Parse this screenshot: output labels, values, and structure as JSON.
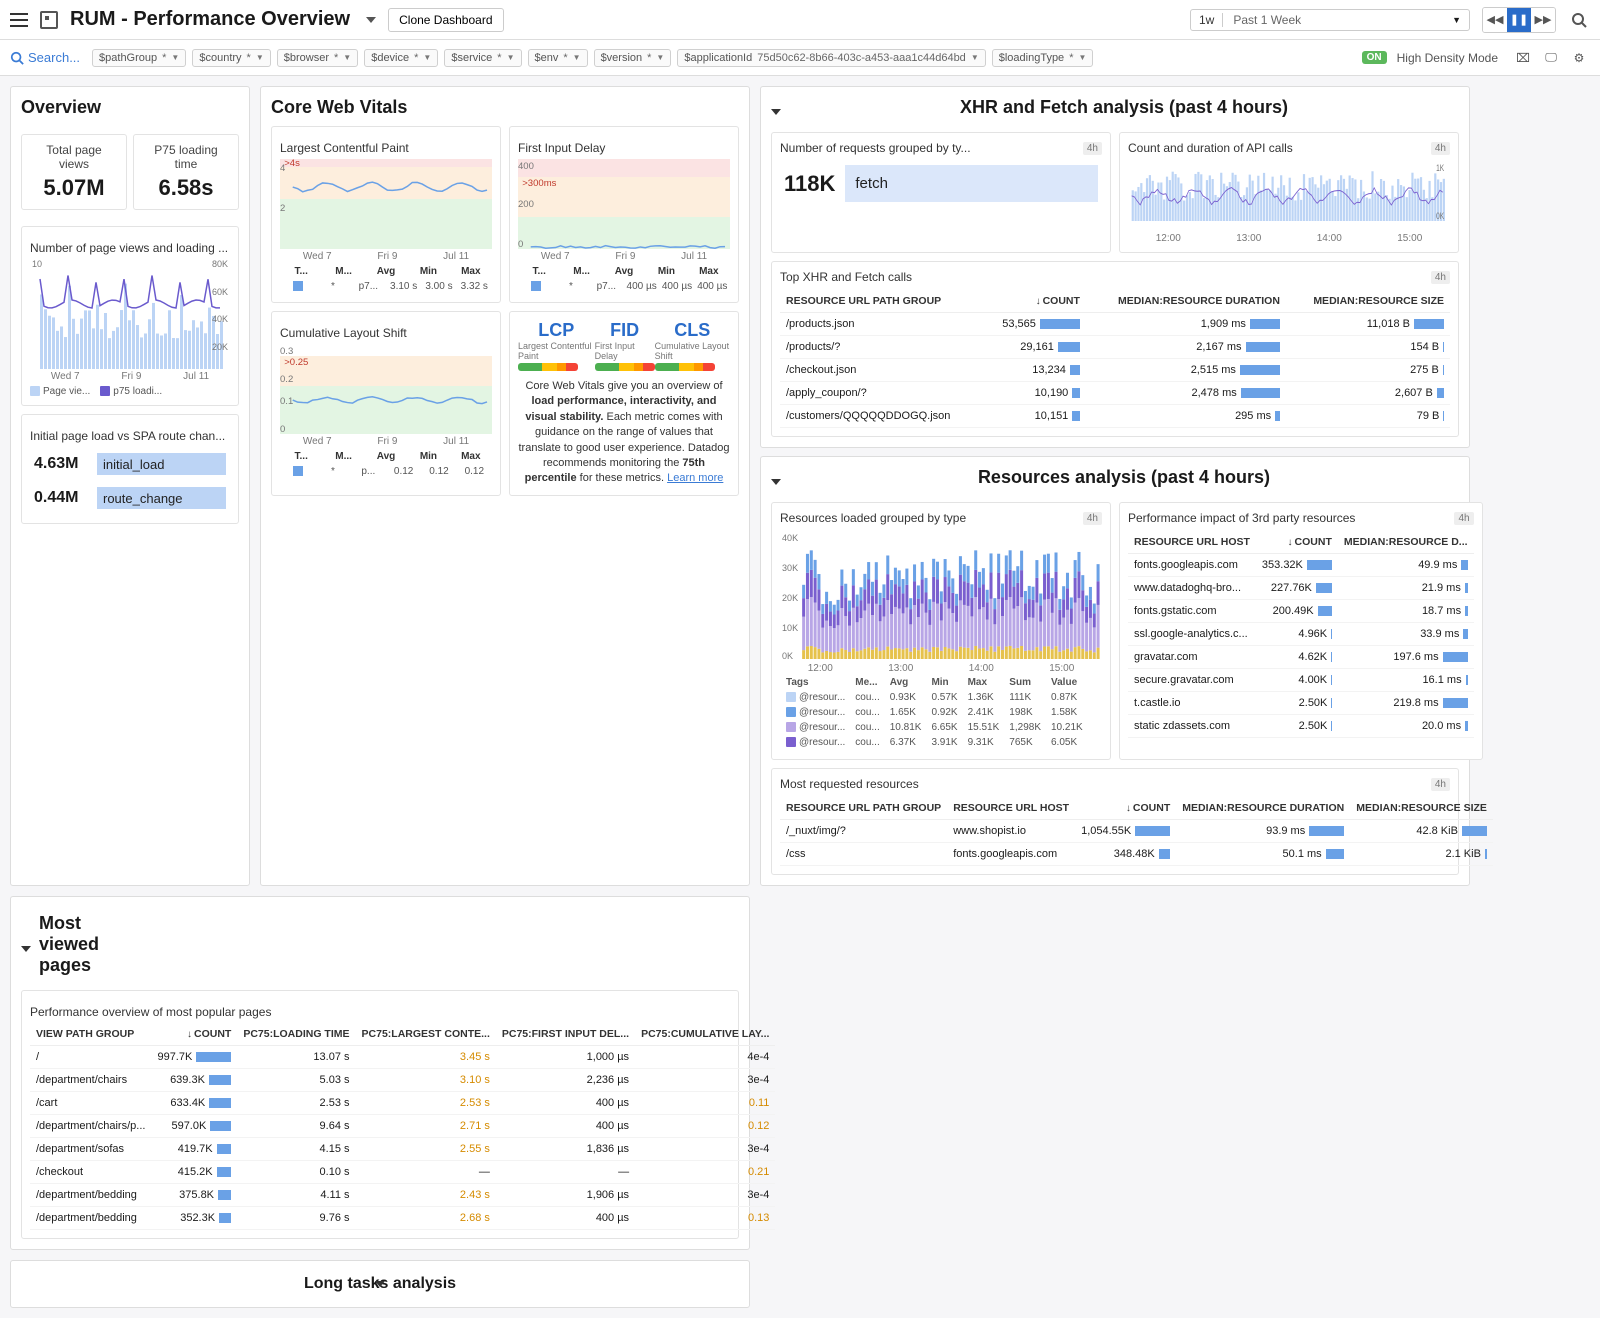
{
  "header": {
    "title": "RUM - Performance Overview",
    "clone_btn": "Clone Dashboard",
    "range_short": "1w",
    "range_long": "Past 1 Week",
    "density_toggle": "ON",
    "density_label": "High Density Mode"
  },
  "filters": [
    {
      "k": "$pathGroup",
      "v": "*"
    },
    {
      "k": "$country",
      "v": "*"
    },
    {
      "k": "$browser",
      "v": "*"
    },
    {
      "k": "$device",
      "v": "*"
    },
    {
      "k": "$service",
      "v": "*"
    },
    {
      "k": "$env",
      "v": "*"
    },
    {
      "k": "$version",
      "v": "*"
    },
    {
      "k": "$applicationId",
      "v": "75d50c62-8b66-403c-a453-aaa1c44d64bd"
    },
    {
      "k": "$loadingType",
      "v": "*"
    }
  ],
  "search_label": "Search...",
  "overview": {
    "title": "Overview",
    "total_views_label": "Total page views",
    "total_views": "5.07M",
    "p75_label": "P75 loading time",
    "p75_value": "6.58s",
    "chart1_title": "Number of page views and loading ...",
    "chart1_xticks": [
      "Wed 7",
      "Fri 9",
      "Jul 11"
    ],
    "chart1_ymax_left": "10",
    "chart1_yticks_right": [
      "80K",
      "60K",
      "40K",
      "20K"
    ],
    "chart1_legend_a": "Page vie...",
    "chart1_legend_a_color": "#bcd4f5",
    "chart1_legend_b": "p75 loadi...",
    "chart1_legend_b_color": "#6a5acd",
    "toplist_title": "Initial page load vs SPA route chan...",
    "toplist": [
      {
        "n": "4.63M",
        "lab": "initial_load",
        "w": 100
      },
      {
        "n": "0.44M",
        "lab": "route_change",
        "w": 14
      }
    ]
  },
  "cwv": {
    "title": "Core Web Vitals",
    "lcp": {
      "title": "Largest Contentful Paint",
      "threshold_label": ">4s",
      "yticks": [
        "4",
        "2"
      ],
      "xticks": [
        "Wed 7",
        "Fri 9",
        "Jul 11"
      ],
      "stats_hdr": [
        "T...",
        "M...",
        "Avg",
        "Min",
        "Max"
      ],
      "stats": [
        "*",
        "p7...",
        "3.10 s",
        "3.00 s",
        "3.32 s"
      ],
      "color": "#6aa1e6"
    },
    "fid": {
      "title": "First Input Delay",
      "threshold_label": ">300ms",
      "yticks": [
        "400",
        "200",
        "0"
      ],
      "xticks": [
        "Wed 7",
        "Fri 9",
        "Jul 11"
      ],
      "stats_hdr": [
        "T...",
        "M...",
        "Avg",
        "Min",
        "Max"
      ],
      "stats": [
        "*",
        "p7...",
        "400 µs",
        "400 µs",
        "400 µs"
      ],
      "color": "#6aa1e6"
    },
    "cls": {
      "title": "Cumulative Layout Shift",
      "threshold_label": ">0.25",
      "yticks": [
        "0.3",
        "0.2",
        "0.1",
        "0"
      ],
      "xticks": [
        "Wed 7",
        "Fri 9",
        "Jul 11"
      ],
      "stats_hdr": [
        "T...",
        "M...",
        "Avg",
        "Min",
        "Max"
      ],
      "stats": [
        "*",
        "p...",
        "0.12",
        "0.12",
        "0.12"
      ],
      "color": "#6aa1e6"
    },
    "explain": {
      "LCP": {
        "c": "#2a6cc9"
      },
      "FID": {
        "c": "#2a6cc9"
      },
      "CLS": {
        "c": "#2a6cc9"
      },
      "text1": "Core Web Vitals give you an overview of ",
      "b1": "load performance, interactivity, and visual stability.",
      "text2": " Each metric comes with guidance on the range of values that translate to good user experience. Datadog recommends monitoring the ",
      "b2": "75th percentile",
      "text3": " for these metrics. ",
      "link": "Learn more"
    }
  },
  "most_viewed": {
    "header": "Most viewed pages",
    "card_title": "Performance overview of most popular pages",
    "cols": [
      "VIEW PATH GROUP",
      "COUNT",
      "PC75:LOADING TIME",
      "PC75:LARGEST CONTE...",
      "PC75:FIRST INPUT DEL...",
      "PC75:CUMULATIVE LAY..."
    ],
    "rows": [
      {
        "path": "/",
        "count": "997.7K",
        "cw": 100,
        "lt": "13.07 s",
        "lcp": "3.45 s",
        "lcpCls": "orange",
        "fid": "1,000 µs",
        "cls": "4e-4"
      },
      {
        "path": "/department/chairs",
        "count": "639.3K",
        "cw": 64,
        "lt": "5.03 s",
        "lcp": "3.10 s",
        "lcpCls": "orange",
        "fid": "2,236 µs",
        "cls": "3e-4"
      },
      {
        "path": "/cart",
        "count": "633.4K",
        "cw": 63,
        "lt": "2.53 s",
        "lcp": "2.53 s",
        "lcpCls": "orange",
        "fid": "400 µs",
        "cls": "0.11",
        "clsCls": "orange"
      },
      {
        "path": "/department/chairs/p...",
        "count": "597.0K",
        "cw": 60,
        "lt": "9.64 s",
        "lcp": "2.71 s",
        "lcpCls": "orange",
        "fid": "400 µs",
        "cls": "0.12",
        "clsCls": "orange"
      },
      {
        "path": "/department/sofas",
        "count": "419.7K",
        "cw": 42,
        "lt": "4.15 s",
        "lcp": "2.55 s",
        "lcpCls": "orange",
        "fid": "1,836 µs",
        "cls": "3e-4"
      },
      {
        "path": "/checkout",
        "count": "415.2K",
        "cw": 42,
        "lt": "0.10 s",
        "lcp": "—",
        "fid": "—",
        "cls": "0.21",
        "clsCls": "orange"
      },
      {
        "path": "/department/bedding",
        "count": "375.8K",
        "cw": 38,
        "lt": "4.11 s",
        "lcp": "2.43 s",
        "lcpCls": "orange",
        "fid": "1,906 µs",
        "cls": "3e-4"
      },
      {
        "path": "/department/bedding",
        "count": "352.3K",
        "cw": 35,
        "lt": "9.76 s",
        "lcp": "2.68 s",
        "lcpCls": "orange",
        "fid": "400 µs",
        "cls": "0.13",
        "clsCls": "orange"
      }
    ]
  },
  "longtasks": {
    "title": "Long tasks analysis"
  },
  "xhr": {
    "header": "XHR and Fetch analysis (past 4 hours)",
    "req_card_title": "Number of requests grouped by ty...",
    "req_count": "118K",
    "req_label": "fetch",
    "api_card_title": "Count and duration of API calls",
    "api_xticks": [
      "12:00",
      "13:00",
      "14:00",
      "15:00"
    ],
    "api_yticks": [
      "1K",
      "0K"
    ],
    "top_title": "Top XHR and Fetch calls",
    "top_cols": [
      "RESOURCE URL PATH GROUP",
      "COUNT",
      "MEDIAN:RESOURCE DURATION",
      "MEDIAN:RESOURCE SIZE"
    ],
    "top_rows": [
      {
        "path": "/products.json",
        "count": "53,565",
        "cw": 100,
        "dur": "1,909 ms",
        "dw": 75,
        "size": "11,018 B",
        "sw": 100
      },
      {
        "path": "/products/?",
        "count": "29,161",
        "cw": 55,
        "dur": "2,167 ms",
        "dw": 86,
        "size": "154 B",
        "sw": 3
      },
      {
        "path": "/checkout.json",
        "count": "13,234",
        "cw": 25,
        "dur": "2,515 ms",
        "dw": 100,
        "size": "275 B",
        "sw": 4
      },
      {
        "path": "/apply_coupon/?",
        "count": "10,190",
        "cw": 19,
        "dur": "2,478 ms",
        "dw": 98,
        "size": "2,607 B",
        "sw": 24
      },
      {
        "path": "/customers/QQQQQDDOGQ.json",
        "count": "10,151",
        "cw": 19,
        "dur": "295 ms",
        "dw": 12,
        "size": "79 B",
        "sw": 2
      }
    ]
  },
  "res": {
    "header": "Resources analysis (past 4 hours)",
    "grp_title": "Resources loaded grouped by type",
    "grp_xticks": [
      "12:00",
      "13:00",
      "14:00",
      "15:00"
    ],
    "grp_ymax": "40K",
    "grp_yticks": [
      "40K",
      "30K",
      "20K",
      "10K",
      "0K"
    ],
    "grp_legend_hdr": [
      "Tags",
      "Me...",
      "Avg",
      "Min",
      "Max",
      "Sum",
      "Value"
    ],
    "grp_legend": [
      {
        "c": "#bcd4f5",
        "t": "@resour...",
        "m": "cou...",
        "a": "0.93K",
        "mi": "0.57K",
        "mx": "1.36K",
        "s": "111K",
        "v": "0.87K"
      },
      {
        "c": "#6aa1e6",
        "t": "@resour...",
        "m": "cou...",
        "a": "1.65K",
        "mi": "0.92K",
        "mx": "2.41K",
        "s": "198K",
        "v": "1.58K"
      },
      {
        "c": "#b8a6e6",
        "t": "@resour...",
        "m": "cou...",
        "a": "10.81K",
        "mi": "6.65K",
        "mx": "15.51K",
        "s": "1,298K",
        "v": "10.21K"
      },
      {
        "c": "#7a5fcf",
        "t": "@resour...",
        "m": "cou...",
        "a": "6.37K",
        "mi": "3.91K",
        "mx": "9.31K",
        "s": "765K",
        "v": "6.05K"
      }
    ],
    "tp_title": "Performance impact of 3rd party resources",
    "tp_cols": [
      "RESOURCE URL HOST",
      "COUNT",
      "MEDIAN:RESOURCE D..."
    ],
    "tp_rows": [
      {
        "h": "fonts.googleapis.com",
        "c": "353.32K",
        "cw": 100,
        "d": "49.9 ms",
        "dw": 25
      },
      {
        "h": "www.datadoghq-bro...",
        "c": "227.76K",
        "cw": 64,
        "d": "21.9 ms",
        "dw": 11
      },
      {
        "h": "fonts.gstatic.com",
        "c": "200.49K",
        "cw": 57,
        "d": "18.7 ms",
        "dw": 10
      },
      {
        "h": "ssl.google-analytics.c...",
        "c": "4.96K",
        "cw": 3,
        "d": "33.9 ms",
        "dw": 17
      },
      {
        "h": "gravatar.com",
        "c": "4.62K",
        "cw": 3,
        "d": "197.6 ms",
        "dw": 100
      },
      {
        "h": "secure.gravatar.com",
        "c": "4.00K",
        "cw": 3,
        "d": "16.1 ms",
        "dw": 8
      },
      {
        "h": "t.castle.io",
        "c": "2.50K",
        "cw": 2,
        "d": "219.8 ms",
        "dw": 100
      },
      {
        "h": "static zdassets.com",
        "c": "2.50K",
        "cw": 2,
        "d": "20.0 ms",
        "dw": 10
      }
    ],
    "mr_title": "Most requested resources",
    "mr_cols": [
      "RESOURCE URL PATH GROUP",
      "RESOURCE URL HOST",
      "COUNT",
      "MEDIAN:RESOURCE DURATION",
      "MEDIAN:RESOURCE SIZE"
    ],
    "mr_rows": [
      {
        "p": "/_nuxt/img/?",
        "h": "www.shopist.io",
        "c": "1,054.55K",
        "cw": 100,
        "d": "93.9 ms",
        "dw": 100,
        "s": "42.8 KiB",
        "sw": 100
      },
      {
        "p": "/css",
        "h": "fonts.googleapis.com",
        "c": "348.48K",
        "cw": 33,
        "d": "50.1 ms",
        "dw": 53,
        "s": "2.1 KiB",
        "sw": 8
      }
    ]
  },
  "colors": {
    "blue": "#6aa1e6",
    "lightblue": "#bcd4f5",
    "purple": "#6a5acd"
  }
}
